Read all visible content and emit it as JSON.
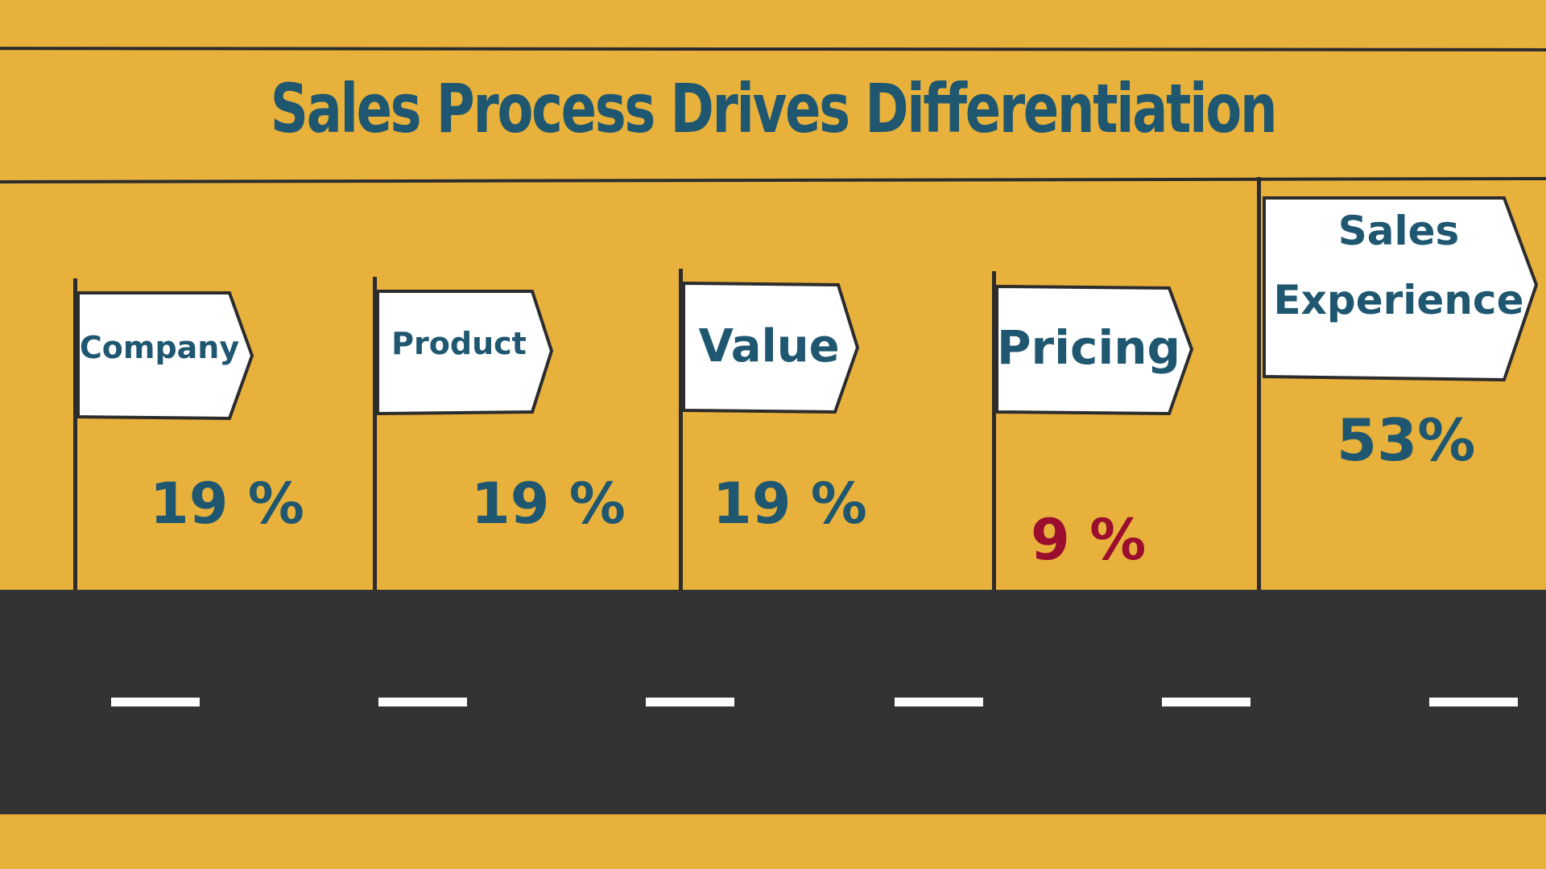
{
  "title": "Sales Process Drives Differentiation",
  "colors": {
    "background": "#E8B13C",
    "text": "#1F5770",
    "highlight": "#9B0E2E",
    "road": "#333333"
  },
  "flags": [
    {
      "label": "Company",
      "value": "19 %"
    },
    {
      "label": "Product",
      "value": "19 %"
    },
    {
      "label": "Value",
      "value": "19 %"
    },
    {
      "label": "Pricing",
      "value": "9 %"
    },
    {
      "label_line1": "Sales",
      "label_line2": "Experience",
      "value": "53%"
    }
  ]
}
